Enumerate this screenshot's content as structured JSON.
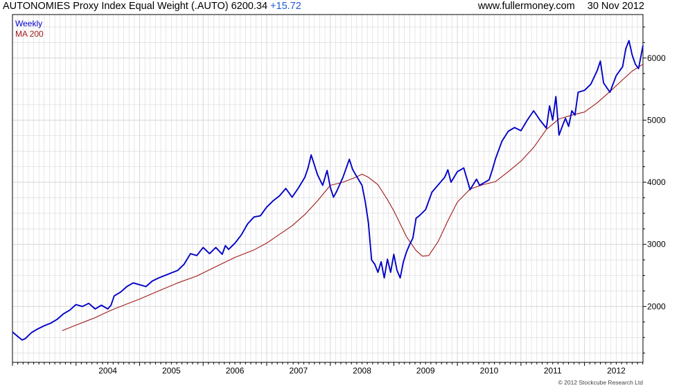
{
  "header": {
    "title": "AUTONOMIES Proxy Index Equal Weight (.AUTO)",
    "last_value": "6200.34",
    "change": "+15.72",
    "website": "www.fullermoney.com",
    "date": "30 Nov 2012"
  },
  "copyright": "© 2012 Stockcube Research Ltd",
  "colors": {
    "price_line": "#0000c8",
    "ma_line": "#a01818",
    "grid": "#d6d6d6",
    "change_text": "#1e5ad6"
  },
  "chart_data": {
    "type": "line",
    "x_ticks": [
      "2004",
      "2005",
      "2006",
      "2007",
      "2008",
      "2009",
      "2010",
      "2011",
      "2012"
    ],
    "y_ticks": [
      2000,
      3000,
      4000,
      5000,
      6000
    ],
    "xlim": [
      2003.0,
      2012.92
    ],
    "ylim": [
      1100,
      6700
    ],
    "y_axis_position": "right",
    "grid": true,
    "legend": "top-left",
    "series": [
      {
        "name": "Weekly",
        "color": "#0000c8",
        "x": [
          2003.0,
          2003.08,
          2003.15,
          2003.2,
          2003.3,
          2003.4,
          2003.5,
          2003.6,
          2003.7,
          2003.8,
          2003.9,
          2004.0,
          2004.1,
          2004.2,
          2004.3,
          2004.4,
          2004.5,
          2004.55,
          2004.6,
          2004.7,
          2004.8,
          2004.9,
          2005.0,
          2005.1,
          2005.2,
          2005.3,
          2005.4,
          2005.5,
          2005.6,
          2005.7,
          2005.8,
          2005.9,
          2006.0,
          2006.1,
          2006.2,
          2006.3,
          2006.35,
          2006.4,
          2006.5,
          2006.6,
          2006.7,
          2006.8,
          2006.9,
          2007.0,
          2007.1,
          2007.2,
          2007.3,
          2007.4,
          2007.5,
          2007.6,
          2007.65,
          2007.7,
          2007.8,
          2007.88,
          2007.95,
          2008.0,
          2008.05,
          2008.1,
          2008.2,
          2008.3,
          2008.35,
          2008.4,
          2008.5,
          2008.55,
          2008.6,
          2008.65,
          2008.7,
          2008.75,
          2008.8,
          2008.85,
          2008.9,
          2008.95,
          2009.0,
          2009.05,
          2009.1,
          2009.15,
          2009.2,
          2009.25,
          2009.3,
          2009.35,
          2009.4,
          2009.5,
          2009.6,
          2009.7,
          2009.8,
          2009.85,
          2009.9,
          2010.0,
          2010.1,
          2010.2,
          2010.3,
          2010.35,
          2010.4,
          2010.5,
          2010.55,
          2010.6,
          2010.7,
          2010.8,
          2010.9,
          2011.0,
          2011.1,
          2011.2,
          2011.3,
          2011.4,
          2011.45,
          2011.5,
          2011.55,
          2011.6,
          2011.65,
          2011.7,
          2011.75,
          2011.8,
          2011.85,
          2011.9,
          2012.0,
          2012.1,
          2012.2,
          2012.25,
          2012.3,
          2012.4,
          2012.5,
          2012.6,
          2012.65,
          2012.7,
          2012.75,
          2012.8,
          2012.85,
          2012.92
        ],
        "values": [
          1590,
          1520,
          1460,
          1480,
          1580,
          1640,
          1690,
          1730,
          1790,
          1880,
          1940,
          2030,
          2000,
          2050,
          1960,
          2020,
          1960,
          2020,
          2170,
          2230,
          2320,
          2380,
          2350,
          2320,
          2410,
          2460,
          2500,
          2540,
          2580,
          2680,
          2850,
          2820,
          2950,
          2850,
          2950,
          2840,
          2980,
          2920,
          3020,
          3150,
          3330,
          3440,
          3460,
          3600,
          3700,
          3780,
          3900,
          3760,
          3910,
          4080,
          4230,
          4440,
          4120,
          3950,
          4190,
          3920,
          3760,
          3850,
          4080,
          4370,
          4210,
          4120,
          3950,
          3690,
          3350,
          2750,
          2680,
          2550,
          2720,
          2460,
          2760,
          2550,
          2840,
          2580,
          2460,
          2720,
          2880,
          3000,
          3100,
          3420,
          3460,
          3560,
          3840,
          3960,
          4080,
          4200,
          4000,
          4170,
          4230,
          3880,
          4050,
          3950,
          3980,
          4040,
          4200,
          4380,
          4660,
          4820,
          4880,
          4830,
          5000,
          5150,
          5000,
          4870,
          5230,
          5000,
          5380,
          4760,
          4900,
          5030,
          4900,
          5150,
          5080,
          5450,
          5480,
          5580,
          5800,
          5950,
          5600,
          5450,
          5720,
          5860,
          6150,
          6280,
          6050,
          5900,
          5830,
          6200
        ]
      },
      {
        "name": "MA 200",
        "color": "#a01818",
        "x": [
          2003.78,
          2004.0,
          2004.3,
          2004.55,
          2004.8,
          2005.0,
          2005.3,
          2005.6,
          2005.9,
          2006.2,
          2006.5,
          2006.8,
          2007.0,
          2007.2,
          2007.4,
          2007.6,
          2007.8,
          2008.0,
          2008.2,
          2008.4,
          2008.5,
          2008.6,
          2008.75,
          2008.9,
          2009.0,
          2009.2,
          2009.35,
          2009.45,
          2009.55,
          2009.7,
          2009.85,
          2010.0,
          2010.2,
          2010.4,
          2010.6,
          2010.8,
          2011.0,
          2011.2,
          2011.4,
          2011.6,
          2011.8,
          2012.0,
          2012.2,
          2012.4,
          2012.6,
          2012.75,
          2012.92
        ],
        "values": [
          1610,
          1700,
          1820,
          1940,
          2040,
          2120,
          2250,
          2380,
          2490,
          2640,
          2790,
          2910,
          3020,
          3160,
          3300,
          3480,
          3700,
          3950,
          4000,
          4080,
          4130,
          4080,
          3960,
          3720,
          3540,
          3120,
          2900,
          2810,
          2820,
          3050,
          3380,
          3680,
          3890,
          3960,
          4010,
          4170,
          4340,
          4560,
          4850,
          5020,
          5080,
          5130,
          5280,
          5460,
          5650,
          5790,
          5900
        ]
      }
    ]
  }
}
